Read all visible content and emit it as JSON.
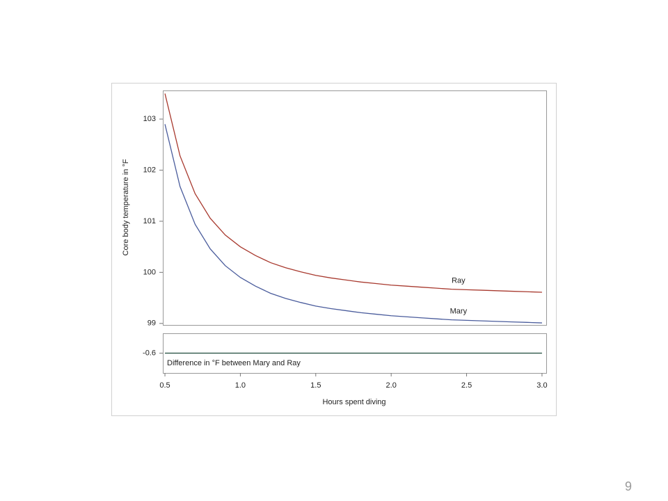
{
  "chart_data": [
    {
      "type": "line",
      "ylabel": "Core body temperature in °F",
      "x": [
        0.5,
        0.6,
        0.7,
        0.8,
        0.9,
        1.0,
        1.1,
        1.2,
        1.3,
        1.4,
        1.5,
        1.6,
        1.7,
        1.8,
        1.9,
        2.0,
        2.1,
        2.2,
        2.3,
        2.4,
        2.5,
        2.6,
        2.7,
        2.8,
        2.9,
        3.0
      ],
      "series": [
        {
          "name": "Ray",
          "color": "#a8392e",
          "values": [
            103.5,
            102.28,
            101.54,
            101.06,
            100.73,
            100.5,
            100.33,
            100.19,
            100.09,
            100.01,
            99.94,
            99.89,
            99.85,
            99.81,
            99.78,
            99.75,
            99.73,
            99.71,
            99.69,
            99.67,
            99.66,
            99.65,
            99.64,
            99.63,
            99.62,
            99.61
          ]
        },
        {
          "name": "Mary",
          "color": "#4a5c9c",
          "values": [
            102.9,
            101.68,
            100.94,
            100.46,
            100.13,
            99.9,
            99.73,
            99.59,
            99.49,
            99.41,
            99.34,
            99.29,
            99.25,
            99.21,
            99.18,
            99.15,
            99.13,
            99.11,
            99.09,
            99.07,
            99.06,
            99.05,
            99.04,
            99.03,
            99.02,
            99.01
          ]
        }
      ],
      "xlim": [
        0.486,
        3.028
      ],
      "ylim": [
        98.97,
        103.56
      ],
      "yticks": [
        99,
        100,
        101,
        102,
        103
      ]
    },
    {
      "type": "line",
      "xlabel": "Hours spent diving",
      "x": [
        0.5,
        3.0
      ],
      "series": [
        {
          "name": "Difference in °F between Mary and Ray",
          "color": "#1e4a3a",
          "values": [
            -0.6,
            -0.6
          ]
        }
      ],
      "xlim": [
        0.486,
        3.028
      ],
      "ylim": [
        -0.8,
        -0.4
      ],
      "yticks": [
        -0.6
      ],
      "xticks": [
        {
          "value": 0.5,
          "label": "0.5"
        },
        {
          "value": 1.0,
          "label": "1.0"
        },
        {
          "value": 1.5,
          "label": "1.5"
        },
        {
          "value": 2.0,
          "label": "2.0"
        },
        {
          "value": 2.5,
          "label": "2.5"
        },
        {
          "value": 3.0,
          "label": "3.0"
        }
      ]
    }
  ],
  "page_number": "9"
}
